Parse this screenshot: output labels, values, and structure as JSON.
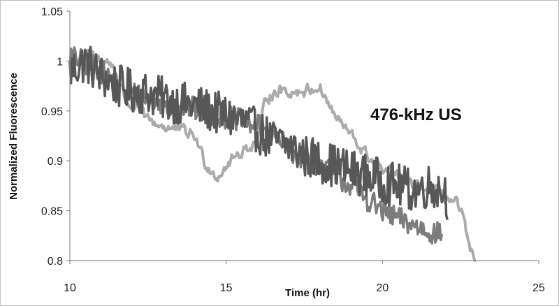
{
  "chart_data": {
    "type": "line",
    "title": "",
    "xlabel": "Time (hr)",
    "ylabel": "Normalized Fluorescence",
    "xlim": [
      10,
      25
    ],
    "ylim": [
      0.8,
      1.05
    ],
    "x_ticks": [
      "10",
      "15",
      "20",
      "25"
    ],
    "y_ticks": [
      "0.8",
      "0.85",
      "0.9",
      "0.95",
      "1",
      "1.05"
    ],
    "grid": false,
    "legend": "none",
    "annotation": "476-kHz US",
    "series": [
      {
        "color": "#575757",
        "noise": 0.022,
        "x": [
          10.0,
          10.5,
          11.0,
          11.5,
          12.0,
          12.5,
          13.0,
          13.5,
          14.0,
          14.5,
          15.0,
          15.5,
          16.0,
          16.5,
          17.0,
          17.5,
          18.0,
          18.5,
          19.0,
          19.5,
          20.0,
          20.5,
          21.0,
          21.5,
          22.0,
          22.1
        ],
        "y": [
          0.99,
          1.0,
          0.985,
          0.975,
          0.97,
          0.968,
          0.962,
          0.958,
          0.955,
          0.95,
          0.945,
          0.94,
          0.93,
          0.92,
          0.915,
          0.905,
          0.9,
          0.895,
          0.89,
          0.885,
          0.88,
          0.875,
          0.87,
          0.875,
          0.87,
          0.86
        ]
      },
      {
        "color": "#7c7c7c",
        "noise": 0.012,
        "x": [
          10.0,
          10.5,
          11.0,
          11.5,
          12.0,
          12.5,
          13.0,
          13.5,
          14.0,
          14.5,
          15.0,
          15.5,
          16.0,
          16.5,
          17.0,
          17.5,
          18.0,
          18.5,
          19.0,
          19.5,
          20.0,
          20.5,
          21.0,
          21.5,
          21.9
        ],
        "y": [
          1.005,
          0.998,
          0.99,
          0.978,
          0.968,
          0.962,
          0.958,
          0.955,
          0.952,
          0.947,
          0.944,
          0.94,
          0.935,
          0.925,
          0.912,
          0.903,
          0.895,
          0.885,
          0.875,
          0.862,
          0.85,
          0.842,
          0.835,
          0.83,
          0.825
        ]
      },
      {
        "color": "#ababab",
        "noise": 0.005,
        "x": [
          10.0,
          10.5,
          11.0,
          11.4,
          11.8,
          12.0,
          12.5,
          13.0,
          13.5,
          14.0,
          14.3,
          14.7,
          15.0,
          15.5,
          16.0,
          16.3,
          16.6,
          17.0,
          17.5,
          18.0,
          18.3,
          18.6,
          19.0,
          19.5,
          20.0,
          20.5,
          21.0,
          21.5,
          22.0,
          22.4,
          22.6,
          22.8,
          23.0
        ],
        "y": [
          1.0,
          1.005,
          1.002,
          0.995,
          0.96,
          0.955,
          0.94,
          0.935,
          0.93,
          0.925,
          0.9,
          0.885,
          0.895,
          0.91,
          0.92,
          0.965,
          0.97,
          0.97,
          0.97,
          0.975,
          0.955,
          0.94,
          0.925,
          0.905,
          0.89,
          0.885,
          0.875,
          0.87,
          0.865,
          0.855,
          0.84,
          0.805,
          0.8
        ]
      }
    ]
  }
}
